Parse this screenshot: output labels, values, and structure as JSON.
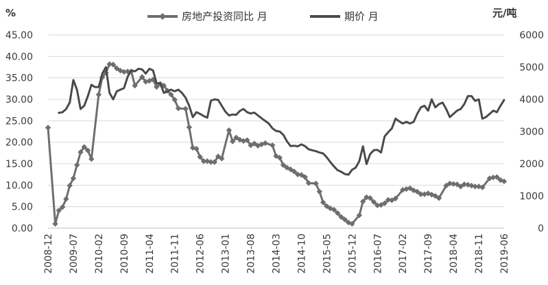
{
  "chart_data": {
    "type": "line",
    "left_unit": "%",
    "right_unit": "元/吨",
    "left_ticks": [
      "0.00",
      "5.00",
      "10.00",
      "15.00",
      "20.00",
      "25.00",
      "30.00",
      "35.00",
      "40.00",
      "45.00"
    ],
    "right_ticks": [
      "0",
      "1000",
      "2000",
      "3000",
      "4000",
      "5000",
      "6000"
    ],
    "ylim_left": [
      0,
      45
    ],
    "ylim_right": [
      0,
      6000
    ],
    "x_tick_labels": [
      "2008-12",
      "2009-07",
      "2010-02",
      "2010-09",
      "2011-04",
      "2011-11",
      "2012-06",
      "2013-01",
      "2013-08",
      "2014-03",
      "2014-10",
      "2015-05",
      "2015-12",
      "2016-07",
      "2017-02",
      "2017-09",
      "2018-04",
      "2018-11",
      "2019-06"
    ],
    "grid": true,
    "legend_position": "top",
    "series": [
      {
        "name": "房地产投资同比 月",
        "axis": "left",
        "color": "#6e6e6e",
        "marker": "diamond",
        "points": [
          [
            "2008-12",
            23.4
          ],
          [
            "2009-02",
            1.0
          ],
          [
            "2009-03",
            4.1
          ],
          [
            "2009-04",
            4.9
          ],
          [
            "2009-05",
            6.8
          ],
          [
            "2009-06",
            9.9
          ],
          [
            "2009-07",
            11.6
          ],
          [
            "2009-08",
            14.7
          ],
          [
            "2009-09",
            17.7
          ],
          [
            "2009-10",
            18.9
          ],
          [
            "2009-11",
            18.1
          ],
          [
            "2009-12",
            16.1
          ],
          [
            "2010-02",
            31.1
          ],
          [
            "2010-03",
            35.1
          ],
          [
            "2010-04",
            36.2
          ],
          [
            "2010-05",
            38.2
          ],
          [
            "2010-06",
            38.1
          ],
          [
            "2010-07",
            37.2
          ],
          [
            "2010-08",
            36.7
          ],
          [
            "2010-09",
            36.4
          ],
          [
            "2010-10",
            36.5
          ],
          [
            "2010-11",
            36.5
          ],
          [
            "2010-12",
            33.2
          ],
          [
            "2011-02",
            35.2
          ],
          [
            "2011-03",
            34.1
          ],
          [
            "2011-04",
            34.3
          ],
          [
            "2011-05",
            34.6
          ],
          [
            "2011-06",
            32.9
          ],
          [
            "2011-07",
            33.6
          ],
          [
            "2011-08",
            33.2
          ],
          [
            "2011-09",
            32.0
          ],
          [
            "2011-10",
            31.1
          ],
          [
            "2011-11",
            29.9
          ],
          [
            "2011-12",
            27.9
          ],
          [
            "2012-02",
            27.8
          ],
          [
            "2012-03",
            23.5
          ],
          [
            "2012-04",
            18.7
          ],
          [
            "2012-05",
            18.5
          ],
          [
            "2012-06",
            16.6
          ],
          [
            "2012-07",
            15.6
          ],
          [
            "2012-08",
            15.6
          ],
          [
            "2012-09",
            15.4
          ],
          [
            "2012-10",
            15.4
          ],
          [
            "2012-11",
            16.7
          ],
          [
            "2012-12",
            16.2
          ],
          [
            "2013-02",
            22.8
          ],
          [
            "2013-03",
            20.2
          ],
          [
            "2013-04",
            21.1
          ],
          [
            "2013-05",
            20.6
          ],
          [
            "2013-06",
            20.3
          ],
          [
            "2013-07",
            20.5
          ],
          [
            "2013-08",
            19.3
          ],
          [
            "2013-09",
            19.7
          ],
          [
            "2013-10",
            19.2
          ],
          [
            "2013-11",
            19.5
          ],
          [
            "2013-12",
            19.8
          ],
          [
            "2014-02",
            19.3
          ],
          [
            "2014-03",
            16.8
          ],
          [
            "2014-04",
            16.4
          ],
          [
            "2014-05",
            14.7
          ],
          [
            "2014-06",
            14.1
          ],
          [
            "2014-07",
            13.7
          ],
          [
            "2014-08",
            13.2
          ],
          [
            "2014-09",
            12.5
          ],
          [
            "2014-10",
            12.4
          ],
          [
            "2014-11",
            11.9
          ],
          [
            "2014-12",
            10.5
          ],
          [
            "2015-02",
            10.4
          ],
          [
            "2015-03",
            8.5
          ],
          [
            "2015-04",
            6.0
          ],
          [
            "2015-05",
            5.1
          ],
          [
            "2015-06",
            4.6
          ],
          [
            "2015-07",
            4.3
          ],
          [
            "2015-08",
            3.5
          ],
          [
            "2015-09",
            2.6
          ],
          [
            "2015-10",
            2.0
          ],
          [
            "2015-11",
            1.3
          ],
          [
            "2015-12",
            1.0
          ],
          [
            "2016-02",
            3.0
          ],
          [
            "2016-03",
            6.2
          ],
          [
            "2016-04",
            7.2
          ],
          [
            "2016-05",
            7.0
          ],
          [
            "2016-06",
            6.1
          ],
          [
            "2016-07",
            5.3
          ],
          [
            "2016-08",
            5.4
          ],
          [
            "2016-09",
            5.8
          ],
          [
            "2016-10",
            6.6
          ],
          [
            "2016-11",
            6.5
          ],
          [
            "2016-12",
            6.9
          ],
          [
            "2017-02",
            8.9
          ],
          [
            "2017-03",
            9.1
          ],
          [
            "2017-04",
            9.3
          ],
          [
            "2017-05",
            8.8
          ],
          [
            "2017-06",
            8.5
          ],
          [
            "2017-07",
            7.9
          ],
          [
            "2017-08",
            7.9
          ],
          [
            "2017-09",
            8.1
          ],
          [
            "2017-10",
            7.8
          ],
          [
            "2017-11",
            7.5
          ],
          [
            "2017-12",
            7.0
          ],
          [
            "2018-02",
            9.9
          ],
          [
            "2018-03",
            10.4
          ],
          [
            "2018-04",
            10.3
          ],
          [
            "2018-05",
            10.2
          ],
          [
            "2018-06",
            9.7
          ],
          [
            "2018-07",
            10.2
          ],
          [
            "2018-08",
            10.1
          ],
          [
            "2018-09",
            9.9
          ],
          [
            "2018-10",
            9.7
          ],
          [
            "2018-11",
            9.7
          ],
          [
            "2018-12",
            9.5
          ],
          [
            "2019-02",
            11.6
          ],
          [
            "2019-03",
            11.8
          ],
          [
            "2019-04",
            11.9
          ],
          [
            "2019-05",
            11.2
          ],
          [
            "2019-06",
            10.9
          ]
        ]
      },
      {
        "name": "期价 月",
        "axis": "right",
        "color": "#4a4a4a",
        "marker": "none",
        "points": [
          [
            "2009-03",
            3580
          ],
          [
            "2009-04",
            3600
          ],
          [
            "2009-05",
            3700
          ],
          [
            "2009-06",
            3900
          ],
          [
            "2009-07",
            4600
          ],
          [
            "2009-08",
            4300
          ],
          [
            "2009-09",
            3700
          ],
          [
            "2009-10",
            3800
          ],
          [
            "2009-11",
            4100
          ],
          [
            "2009-12",
            4450
          ],
          [
            "2010-01",
            4380
          ],
          [
            "2010-02",
            4380
          ],
          [
            "2010-03",
            4800
          ],
          [
            "2010-04",
            5000
          ],
          [
            "2010-05",
            4200
          ],
          [
            "2010-06",
            4000
          ],
          [
            "2010-07",
            4250
          ],
          [
            "2010-08",
            4300
          ],
          [
            "2010-09",
            4350
          ],
          [
            "2010-10",
            4700
          ],
          [
            "2010-11",
            4900
          ],
          [
            "2010-12",
            4870
          ],
          [
            "2011-01",
            4950
          ],
          [
            "2011-02",
            4930
          ],
          [
            "2011-03",
            4800
          ],
          [
            "2011-04",
            4950
          ],
          [
            "2011-05",
            4900
          ],
          [
            "2011-06",
            4500
          ],
          [
            "2011-07",
            4500
          ],
          [
            "2011-08",
            4200
          ],
          [
            "2011-09",
            4250
          ],
          [
            "2011-10",
            4300
          ],
          [
            "2011-11",
            4250
          ],
          [
            "2011-12",
            4300
          ],
          [
            "2012-01",
            4200
          ],
          [
            "2012-02",
            4050
          ],
          [
            "2012-03",
            3800
          ],
          [
            "2012-04",
            3450
          ],
          [
            "2012-05",
            3600
          ],
          [
            "2012-06",
            3550
          ],
          [
            "2012-07",
            3480
          ],
          [
            "2012-08",
            3430
          ],
          [
            "2012-09",
            3960
          ],
          [
            "2012-10",
            4000
          ],
          [
            "2012-11",
            3980
          ],
          [
            "2012-12",
            3800
          ],
          [
            "2013-01",
            3620
          ],
          [
            "2013-02",
            3500
          ],
          [
            "2013-03",
            3530
          ],
          [
            "2013-04",
            3520
          ],
          [
            "2013-05",
            3640
          ],
          [
            "2013-06",
            3700
          ],
          [
            "2013-07",
            3600
          ],
          [
            "2013-08",
            3560
          ],
          [
            "2013-09",
            3590
          ],
          [
            "2013-10",
            3500
          ],
          [
            "2013-11",
            3410
          ],
          [
            "2013-12",
            3330
          ],
          [
            "2014-01",
            3250
          ],
          [
            "2014-02",
            3100
          ],
          [
            "2014-03",
            3020
          ],
          [
            "2014-04",
            3000
          ],
          [
            "2014-05",
            2900
          ],
          [
            "2014-06",
            2700
          ],
          [
            "2014-07",
            2550
          ],
          [
            "2014-08",
            2560
          ],
          [
            "2014-09",
            2540
          ],
          [
            "2014-10",
            2600
          ],
          [
            "2014-11",
            2550
          ],
          [
            "2014-12",
            2450
          ],
          [
            "2015-01",
            2420
          ],
          [
            "2015-02",
            2390
          ],
          [
            "2015-03",
            2350
          ],
          [
            "2015-04",
            2320
          ],
          [
            "2015-05",
            2200
          ],
          [
            "2015-06",
            2050
          ],
          [
            "2015-07",
            1920
          ],
          [
            "2015-08",
            1800
          ],
          [
            "2015-09",
            1750
          ],
          [
            "2015-10",
            1680
          ],
          [
            "2015-11",
            1660
          ],
          [
            "2015-12",
            1810
          ],
          [
            "2016-01",
            1880
          ],
          [
            "2016-02",
            2080
          ],
          [
            "2016-03",
            2540
          ],
          [
            "2016-04",
            1990
          ],
          [
            "2016-05",
            2300
          ],
          [
            "2016-06",
            2420
          ],
          [
            "2016-07",
            2430
          ],
          [
            "2016-08",
            2350
          ],
          [
            "2016-09",
            2850
          ],
          [
            "2016-10",
            2980
          ],
          [
            "2016-11",
            3100
          ],
          [
            "2016-12",
            3400
          ],
          [
            "2017-01",
            3320
          ],
          [
            "2017-02",
            3250
          ],
          [
            "2017-03",
            3300
          ],
          [
            "2017-04",
            3250
          ],
          [
            "2017-05",
            3300
          ],
          [
            "2017-06",
            3550
          ],
          [
            "2017-07",
            3750
          ],
          [
            "2017-08",
            3800
          ],
          [
            "2017-09",
            3650
          ],
          [
            "2017-10",
            4000
          ],
          [
            "2017-11",
            3750
          ],
          [
            "2017-12",
            3850
          ],
          [
            "2018-01",
            3900
          ],
          [
            "2018-02",
            3700
          ],
          [
            "2018-03",
            3450
          ],
          [
            "2018-04",
            3550
          ],
          [
            "2018-05",
            3650
          ],
          [
            "2018-06",
            3700
          ],
          [
            "2018-07",
            3850
          ],
          [
            "2018-08",
            4100
          ],
          [
            "2018-09",
            4100
          ],
          [
            "2018-10",
            3950
          ],
          [
            "2018-11",
            4000
          ],
          [
            "2018-12",
            3400
          ],
          [
            "2019-01",
            3450
          ],
          [
            "2019-02",
            3550
          ],
          [
            "2019-03",
            3650
          ],
          [
            "2019-04",
            3600
          ],
          [
            "2019-05",
            3800
          ],
          [
            "2019-06",
            3980
          ]
        ]
      }
    ]
  }
}
